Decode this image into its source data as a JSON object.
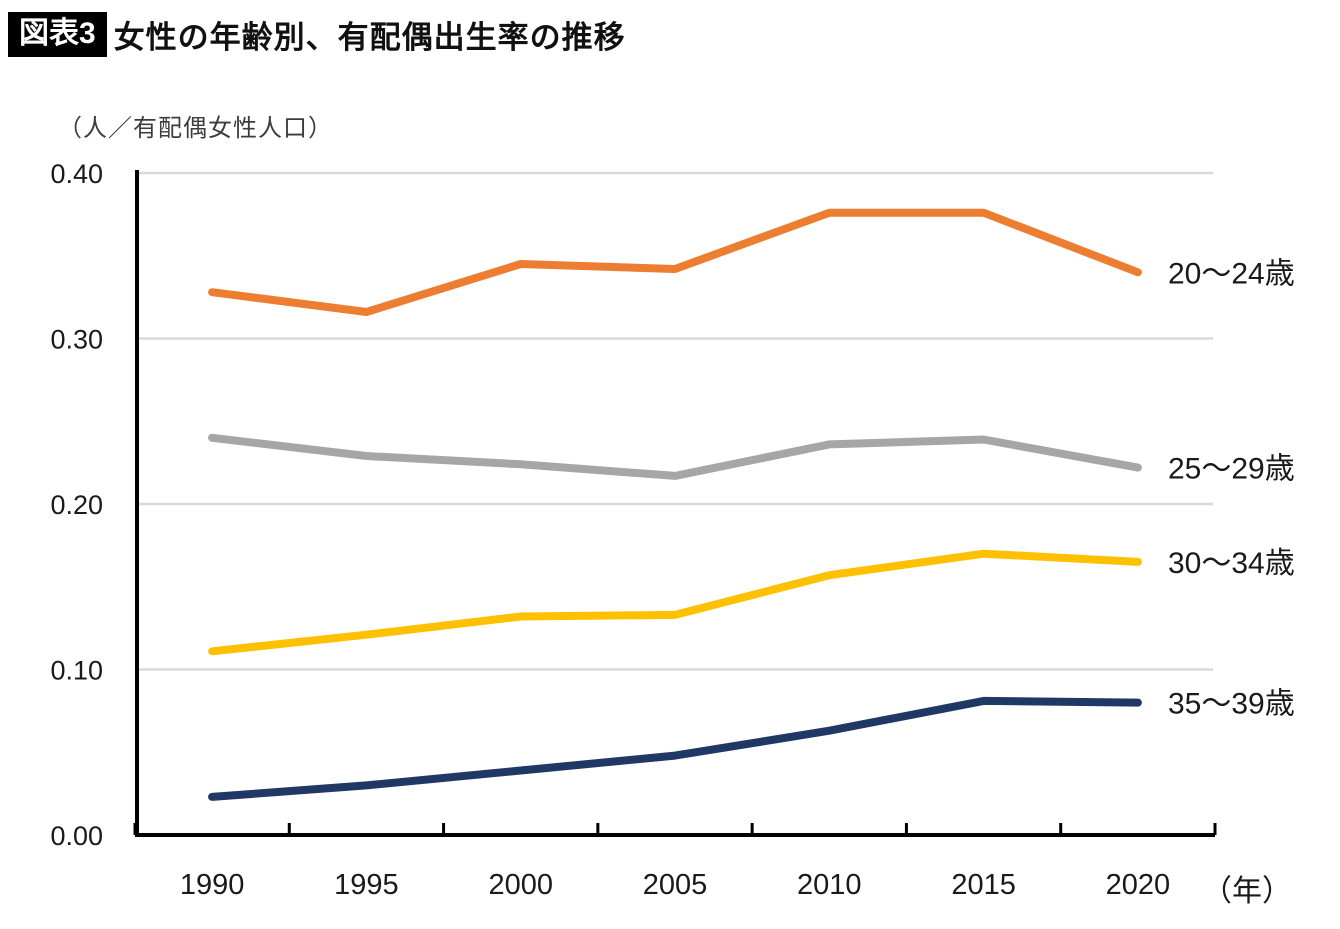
{
  "figure": {
    "badge": "図表3",
    "title": "女性の年齢別、有配偶出生率の推移",
    "unit_label": "（人／有配偶女性人口）",
    "x_axis_suffix": "（年）"
  },
  "colors": {
    "grid": "#D9D9D9",
    "axis": "#000000",
    "text": "#1A1A1A",
    "badge_bg": "#000000",
    "badge_text": "#FFFFFF"
  },
  "chart_data": {
    "type": "line",
    "title": "女性の年齢別、有配偶出生率の推移",
    "xlabel": "年",
    "ylabel": "人／有配偶女性人口",
    "categories": [
      "1990",
      "1995",
      "2000",
      "2005",
      "2010",
      "2015",
      "2020"
    ],
    "series": [
      {
        "name": "20〜24歳",
        "color": "#ED7D31",
        "values": [
          0.328,
          0.316,
          0.345,
          0.342,
          0.376,
          0.376,
          0.34
        ]
      },
      {
        "name": "25〜29歳",
        "color": "#A6A6A6",
        "values": [
          0.24,
          0.229,
          0.224,
          0.217,
          0.236,
          0.239,
          0.222
        ]
      },
      {
        "name": "30〜34歳",
        "color": "#FFC000",
        "values": [
          0.111,
          0.121,
          0.132,
          0.133,
          0.157,
          0.17,
          0.165
        ]
      },
      {
        "name": "35〜39歳",
        "color": "#1F3864",
        "values": [
          0.023,
          0.03,
          0.039,
          0.048,
          0.063,
          0.081,
          0.08
        ]
      }
    ],
    "ylim": [
      0.0,
      0.4
    ],
    "ytick_interval": 0.1,
    "ytick_labels": [
      "0.00",
      "0.10",
      "0.20",
      "0.30",
      "0.40"
    ],
    "grid": true,
    "legend_position": "right-of-line-ends"
  }
}
